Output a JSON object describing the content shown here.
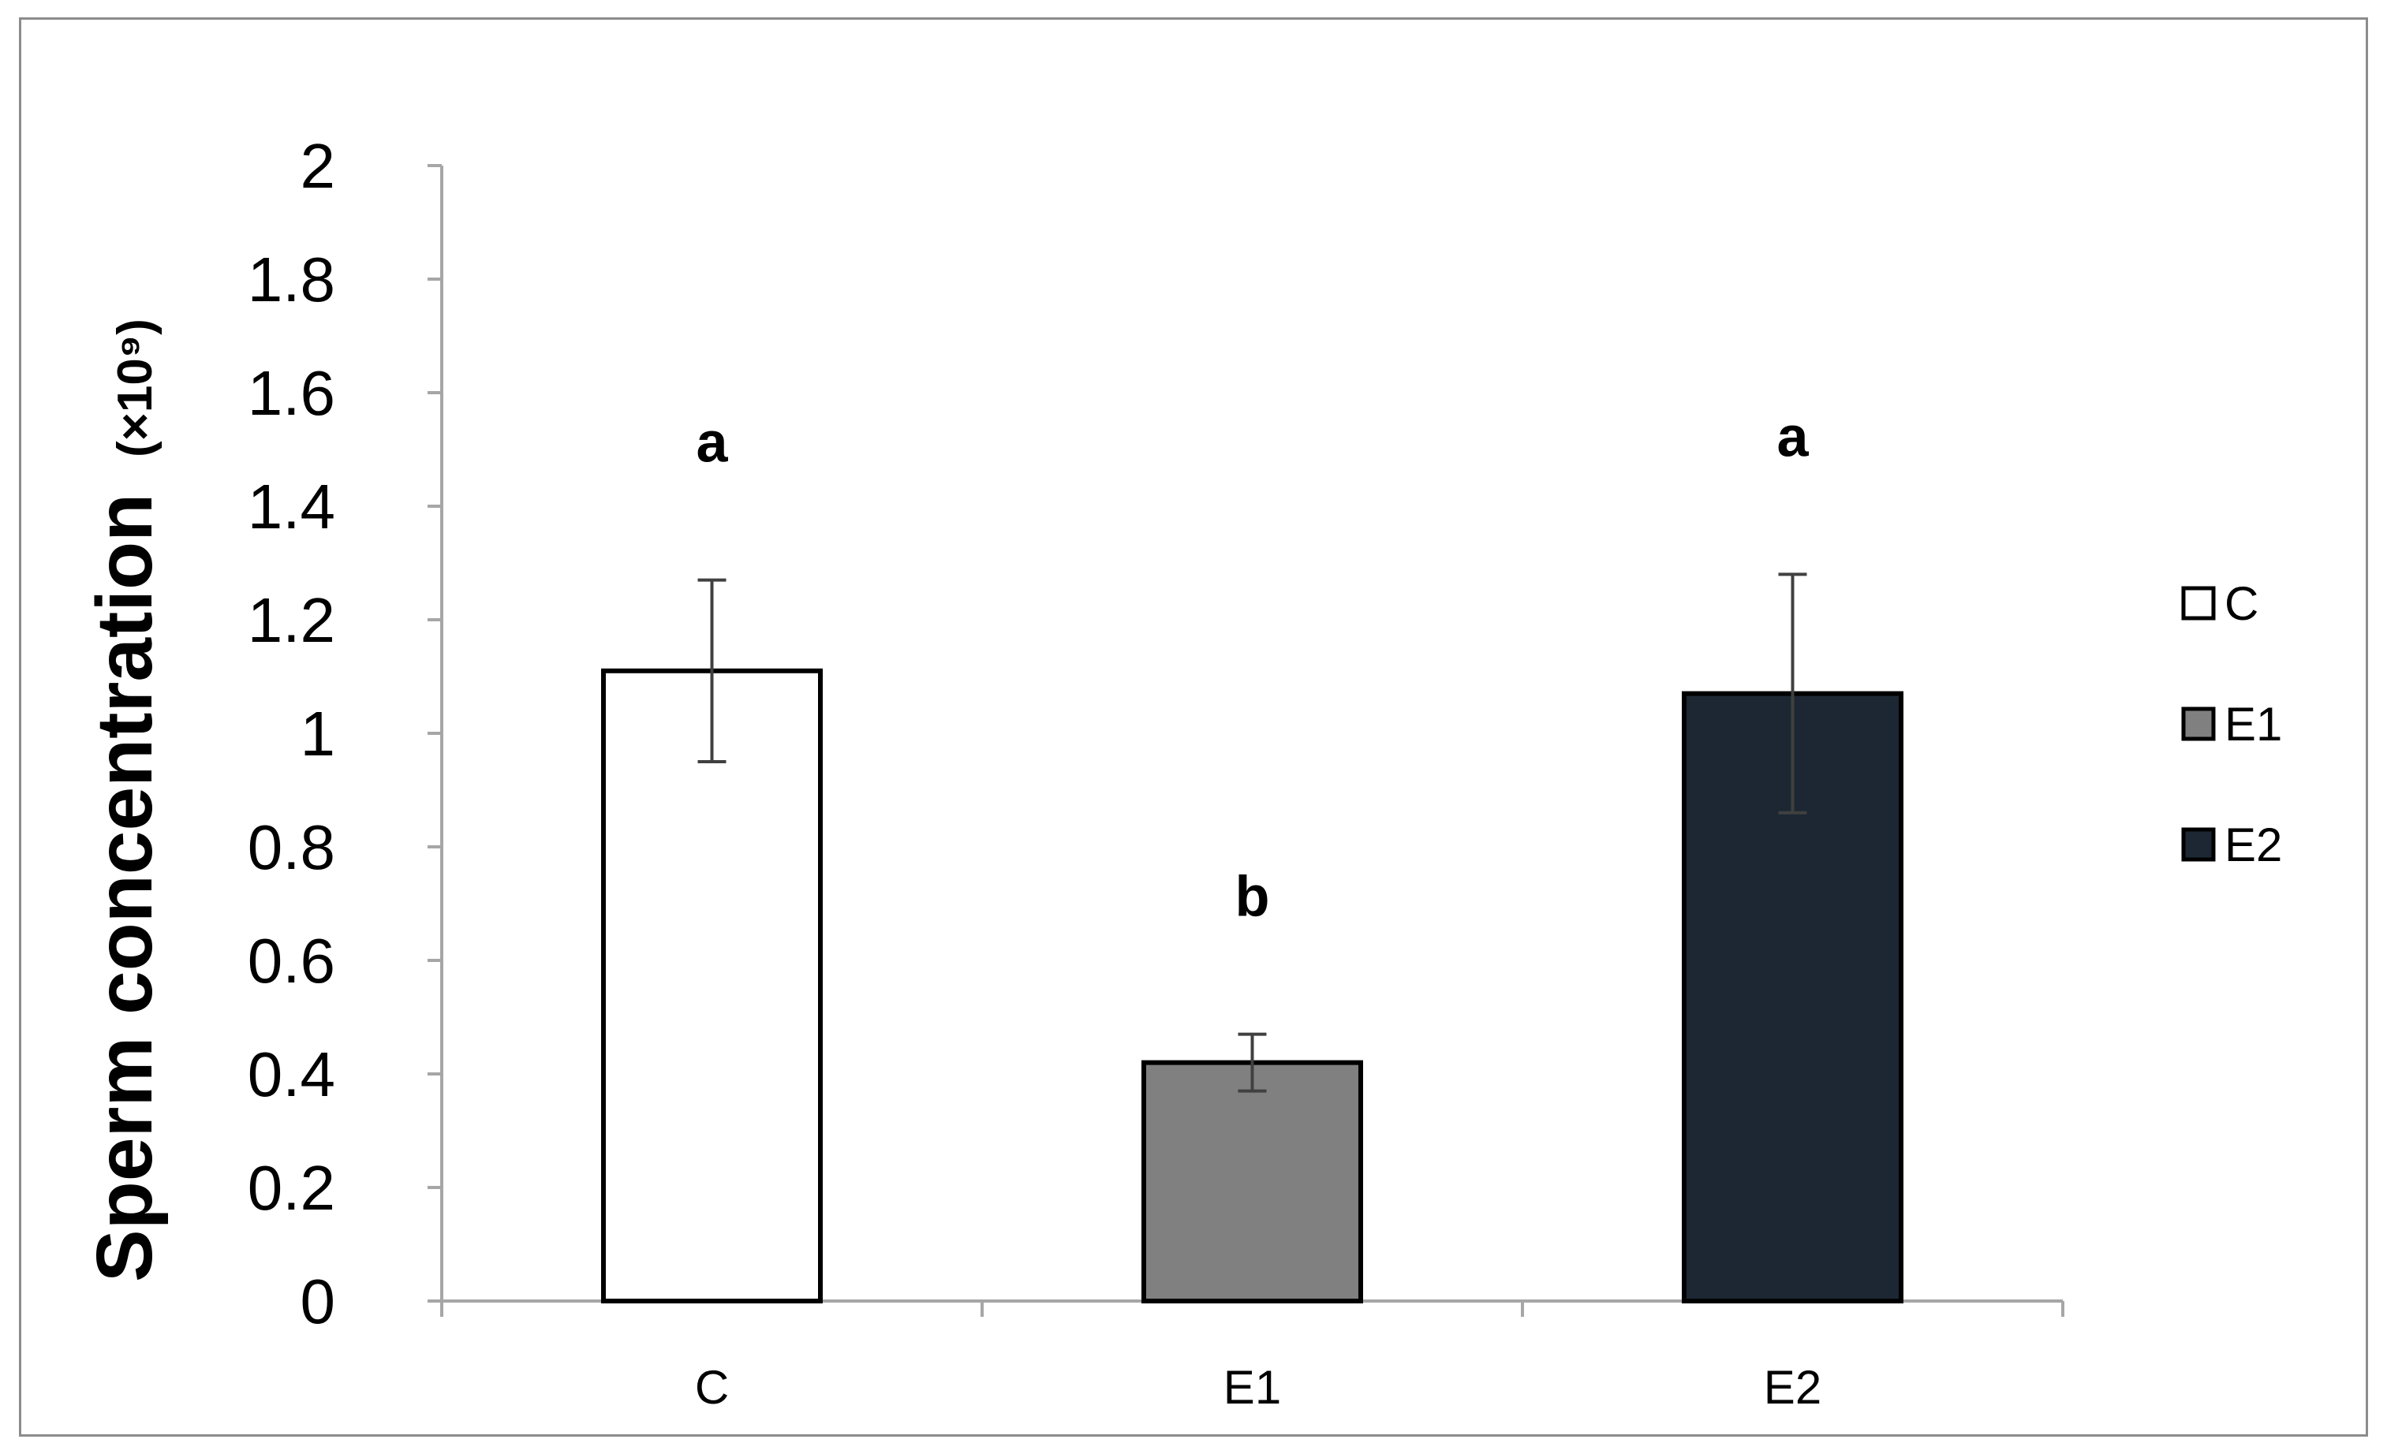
{
  "chart_data": {
    "type": "bar",
    "title": "",
    "xlabel": "",
    "ylabel": "Sperm concentration (×10⁹)",
    "ylabel_main": "Sperm concentration",
    "ylabel_unit": "(×10⁹)",
    "ylim": [
      0,
      2
    ],
    "yticks": [
      "0",
      "0.2",
      "0.4",
      "0.6",
      "0.8",
      "1",
      "1.2",
      "1.4",
      "1.6",
      "1.8",
      "2"
    ],
    "categories": [
      "C",
      "E1",
      "E2"
    ],
    "values": [
      1.11,
      0.42,
      1.07
    ],
    "errors": [
      0.16,
      0.05,
      0.21
    ],
    "significance_labels": [
      "a",
      "b",
      "a"
    ],
    "colors": [
      "#ffffff",
      "#808080",
      "#1c2733"
    ],
    "legend": {
      "placement": "right",
      "entries": [
        "C",
        "E1",
        "E2"
      ]
    },
    "grid": false
  }
}
